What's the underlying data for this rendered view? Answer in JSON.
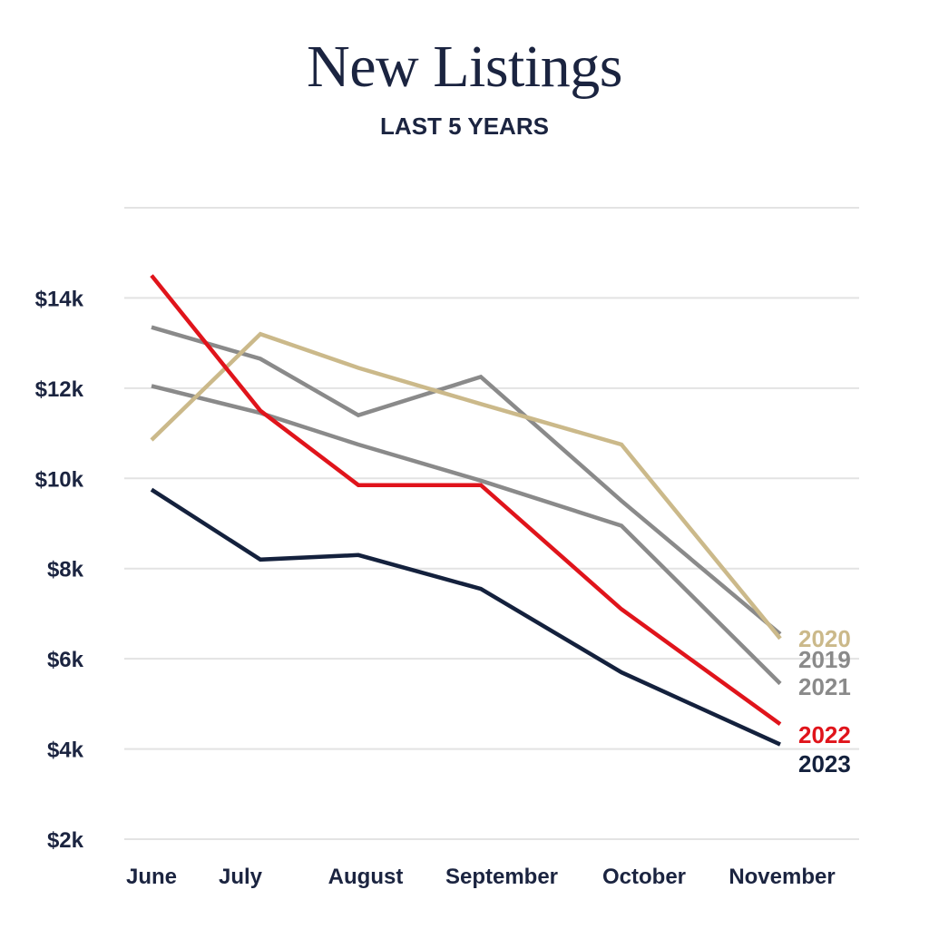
{
  "chart_data": {
    "type": "line",
    "title": "New Listings",
    "subtitle": "LAST 5 YEARS",
    "xlabel": "",
    "ylabel": "",
    "categories": [
      "June",
      "July",
      "August",
      "September",
      "October",
      "November"
    ],
    "y_ticks": [
      "$2k",
      "$4k",
      "$6k",
      "$8k",
      "$10k",
      "$12k",
      "$14k"
    ],
    "ylim": [
      2000,
      16000
    ],
    "grid": true,
    "series": [
      {
        "name": "2019",
        "color": "#8a8a8a",
        "values": [
          13350,
          12650,
          11400,
          12250,
          9500,
          6550
        ]
      },
      {
        "name": "2020",
        "color": "#cbb98a",
        "values": [
          10850,
          13200,
          12450,
          11650,
          10750,
          6450
        ]
      },
      {
        "name": "2021",
        "color": "#8a8a8a",
        "values": [
          12050,
          11450,
          10750,
          9950,
          8950,
          5450
        ]
      },
      {
        "name": "2022",
        "color": "#e0141b",
        "values": [
          14500,
          11500,
          9850,
          9850,
          7100,
          4550
        ]
      },
      {
        "name": "2023",
        "color": "#14213d",
        "values": [
          9750,
          8200,
          8300,
          7550,
          5700,
          4100
        ]
      }
    ]
  },
  "colors": {
    "text": "#1b2440",
    "grid": "#e3e3e3"
  }
}
